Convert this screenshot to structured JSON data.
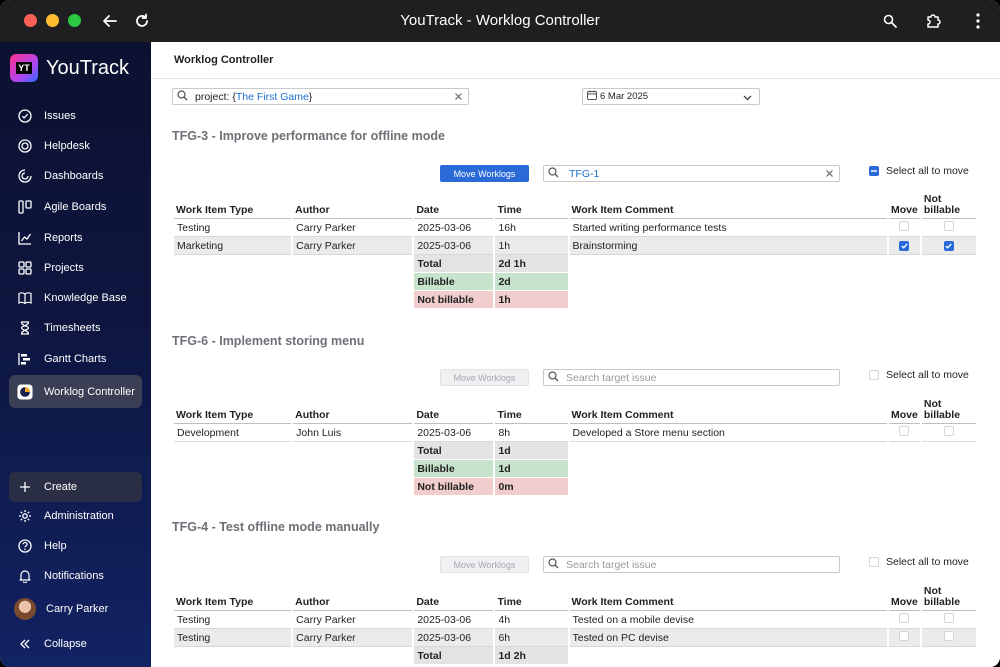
{
  "window": {
    "title": "YouTrack - Worklog Controller"
  },
  "brand": {
    "name": "YouTrack",
    "mark": "YT"
  },
  "sidebar": {
    "items": [
      {
        "label": "Issues",
        "icon": "issues-icon"
      },
      {
        "label": "Helpdesk",
        "icon": "helpdesk-icon"
      },
      {
        "label": "Dashboards",
        "icon": "dashboards-icon"
      },
      {
        "label": "Agile Boards",
        "icon": "agile-boards-icon"
      },
      {
        "label": "Reports",
        "icon": "reports-icon"
      },
      {
        "label": "Projects",
        "icon": "projects-icon"
      },
      {
        "label": "Knowledge Base",
        "icon": "knowledge-base-icon"
      },
      {
        "label": "Timesheets",
        "icon": "timesheets-icon"
      },
      {
        "label": "Gantt Charts",
        "icon": "gantt-charts-icon"
      },
      {
        "label": "Worklog Controller",
        "icon": "worklog-controller-icon",
        "active": true
      }
    ],
    "bottom": {
      "create": "Create",
      "administration": "Administration",
      "help": "Help",
      "notifications": "Notifications",
      "user": "Carry Parker",
      "collapse": "Collapse"
    }
  },
  "main": {
    "header": "Worklog Controller",
    "filter": {
      "prefix": "project: {",
      "value": "The First Game",
      "suffix": "}"
    },
    "date": "6 Mar 2025",
    "move_label": "Move Worklogs",
    "target_placeholder": "Search target issue",
    "select_all_label": "Select all to move",
    "columns": [
      "Work Item Type",
      "Author",
      "Date",
      "Time",
      "Work Item Comment",
      "Move",
      "Not billable"
    ],
    "summary_labels": {
      "total": "Total",
      "billable": "Billable",
      "not_billable": "Not billable"
    },
    "sections": [
      {
        "title": "TFG-3 - Improve performance for offline mode",
        "target_value": "TFG-1",
        "rows": [
          {
            "type": "Testing",
            "author": "Carry Parker",
            "date": "2025-03-06",
            "time": "16h",
            "comment": "Started writing performance tests",
            "move": false,
            "not_billable": false
          },
          {
            "type": "Marketing",
            "author": "Carry Parker",
            "date": "2025-03-06",
            "time": "1h",
            "comment": "Brainstorming",
            "move": true,
            "not_billable": true
          }
        ],
        "total": "2d 1h",
        "billable": "2d",
        "not_billable": "1h"
      },
      {
        "title": "TFG-6 - Implement storing menu",
        "target_value": "",
        "rows": [
          {
            "type": "Development",
            "author": "John Luis",
            "date": "2025-03-06",
            "time": "8h",
            "comment": "Developed a Store menu section",
            "move": false,
            "not_billable": false
          }
        ],
        "total": "1d",
        "billable": "1d",
        "not_billable": "0m"
      },
      {
        "title": "TFG-4 - Test offline mode manually",
        "target_value": "",
        "rows": [
          {
            "type": "Testing",
            "author": "Carry Parker",
            "date": "2025-03-06",
            "time": "4h",
            "comment": "Tested on a mobile devise",
            "move": false,
            "not_billable": false
          },
          {
            "type": "Testing",
            "author": "Carry Parker",
            "date": "2025-03-06",
            "time": "6h",
            "comment": "Tested on PC devise",
            "move": false,
            "not_billable": false
          }
        ],
        "total": "1d 2h"
      }
    ]
  },
  "colors": {
    "accent": "#2a6ad8",
    "billable": "#c7e3cc",
    "not_billable": "#f1cdcd",
    "sidebar": "#0e1640"
  }
}
